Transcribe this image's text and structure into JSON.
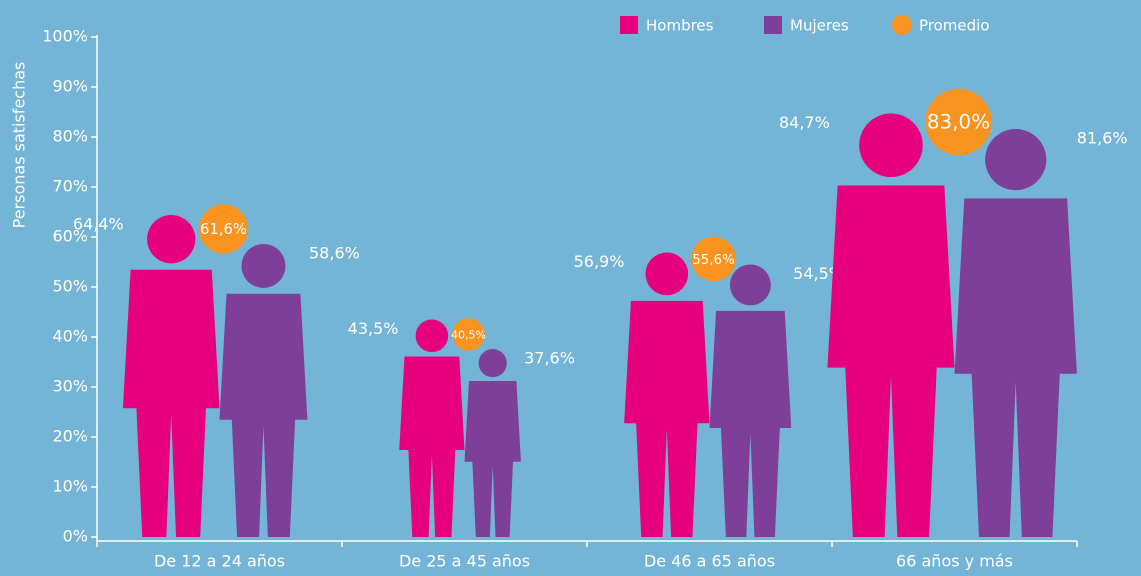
{
  "chart_data": {
    "type": "pictogram",
    "ylabel": "Personas satisfechas",
    "categories": [
      "De 12 a 24 años",
      "De 25 a 45 años",
      "De 46 a 65 años",
      "66 años y más"
    ],
    "series": [
      {
        "name": "Hombres",
        "color": "#e6007e",
        "values": [
          64.4,
          43.5,
          56.9,
          84.7
        ],
        "value_labels": [
          "64,4%",
          "43,5%",
          "56,9%",
          "84,7%"
        ]
      },
      {
        "name": "Mujeres",
        "color": "#7d3f98",
        "values": [
          58.6,
          37.6,
          54.5,
          81.6
        ],
        "value_labels": [
          "58,6%",
          "37,6%",
          "54,5%",
          "81,6%"
        ]
      },
      {
        "name": "Promedio",
        "color": "#f7931e",
        "values": [
          61.6,
          40.5,
          55.6,
          83.0
        ],
        "value_labels": [
          "61,6%",
          "40,5%",
          "55,6%",
          "83,0%"
        ]
      }
    ],
    "ylim": [
      0,
      100
    ],
    "yticks": [
      {
        "value": 0,
        "label": "0%"
      },
      {
        "value": 10,
        "label": "10%"
      },
      {
        "value": 20,
        "label": "20%"
      },
      {
        "value": 30,
        "label": "30%"
      },
      {
        "value": 40,
        "label": "40%"
      },
      {
        "value": 50,
        "label": "50%"
      },
      {
        "value": 60,
        "label": "60%"
      },
      {
        "value": 70,
        "label": "70%"
      },
      {
        "value": 80,
        "label": "80%"
      },
      {
        "value": 90,
        "label": "90%"
      },
      {
        "value": 100,
        "label": "100%"
      }
    ],
    "legend": "top-right"
  }
}
